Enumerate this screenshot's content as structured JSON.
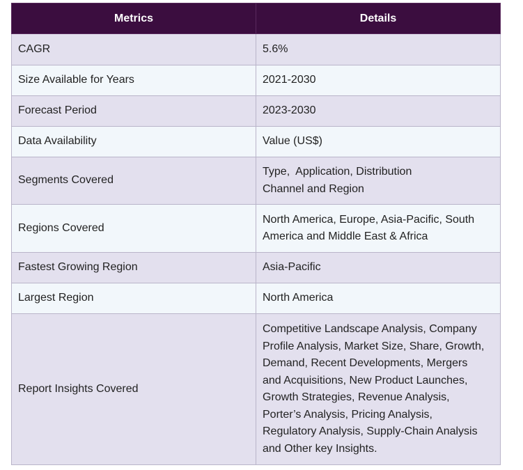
{
  "table": {
    "headers": {
      "metrics": "Metrics",
      "details": "Details"
    },
    "rows": [
      {
        "metric": "CAGR",
        "details": [
          "5.6%"
        ]
      },
      {
        "metric": "Size Available for Years",
        "details": [
          "2021-2030"
        ]
      },
      {
        "metric": "Forecast Period",
        "details": [
          "2023-2030"
        ]
      },
      {
        "metric": "Data Availability",
        "details": [
          "Value (US$)"
        ]
      },
      {
        "metric": "Segments Covered",
        "details": [
          "Type,  Application, Distribution",
          "Channel and Region"
        ]
      },
      {
        "metric": "Regions Covered",
        "details": [
          "North America, Europe, Asia-Pacific, South",
          "America and Middle East & Africa"
        ]
      },
      {
        "metric": "Fastest Growing Region",
        "details": [
          "Asia-Pacific"
        ]
      },
      {
        "metric": "Largest Region",
        "details": [
          "North America"
        ]
      },
      {
        "metric": "Report Insights Covered",
        "details": [
          "Competitive Landscape Analysis, Company",
          "Profile Analysis, Market Size, Share, Growth,",
          "Demand, Recent Developments, Mergers",
          "and Acquisitions, New Product Launches,",
          "Growth Strategies, Revenue Analysis,",
          "Porter’s Analysis, Pricing Analysis,",
          "Regulatory Analysis, Supply-Chain Analysis",
          "and Other key Insights."
        ]
      }
    ]
  }
}
